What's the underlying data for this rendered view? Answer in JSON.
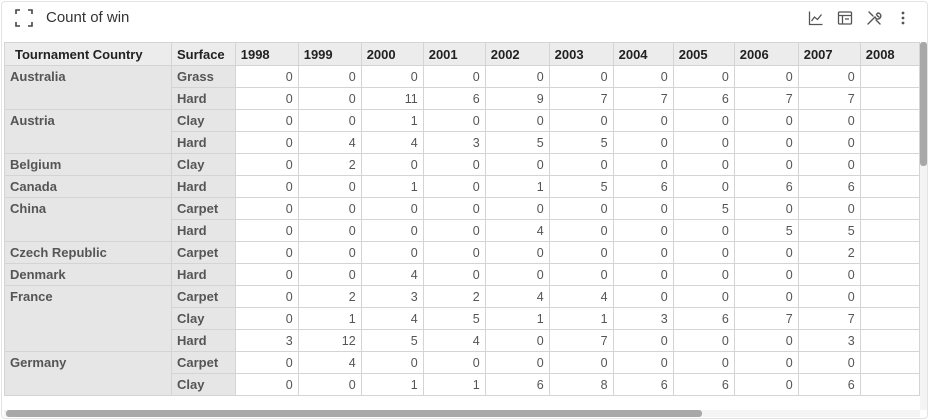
{
  "panel": {
    "title": "Count of win"
  },
  "header_icons": [
    "expand-icon",
    "line-chart-icon",
    "table-view-icon",
    "tools-icon",
    "more-vertical-icon"
  ],
  "table": {
    "columns": [
      "Tournament Country",
      "Surface",
      "1998",
      "1999",
      "2000",
      "2001",
      "2002",
      "2003",
      "2004",
      "2005",
      "2006",
      "2007",
      "2008"
    ],
    "groups": [
      {
        "country": "Australia",
        "rows": [
          {
            "surface": "Grass",
            "values": [
              "0",
              "0",
              "0",
              "0",
              "0",
              "0",
              "0",
              "0",
              "0",
              "0",
              ""
            ]
          },
          {
            "surface": "Hard",
            "values": [
              "0",
              "0",
              "11",
              "6",
              "9",
              "7",
              "7",
              "6",
              "7",
              "7",
              ""
            ]
          }
        ]
      },
      {
        "country": "Austria",
        "rows": [
          {
            "surface": "Clay",
            "values": [
              "0",
              "0",
              "1",
              "0",
              "0",
              "0",
              "0",
              "0",
              "0",
              "0",
              ""
            ]
          },
          {
            "surface": "Hard",
            "values": [
              "0",
              "4",
              "4",
              "3",
              "5",
              "5",
              "0",
              "0",
              "0",
              "0",
              ""
            ]
          }
        ]
      },
      {
        "country": "Belgium",
        "rows": [
          {
            "surface": "Clay",
            "values": [
              "0",
              "2",
              "0",
              "0",
              "0",
              "0",
              "0",
              "0",
              "0",
              "0",
              ""
            ]
          }
        ]
      },
      {
        "country": "Canada",
        "rows": [
          {
            "surface": "Hard",
            "values": [
              "0",
              "0",
              "1",
              "0",
              "1",
              "5",
              "6",
              "0",
              "6",
              "6",
              ""
            ]
          }
        ]
      },
      {
        "country": "China",
        "rows": [
          {
            "surface": "Carpet",
            "values": [
              "0",
              "0",
              "0",
              "0",
              "0",
              "0",
              "0",
              "5",
              "0",
              "0",
              ""
            ]
          },
          {
            "surface": "Hard",
            "values": [
              "0",
              "0",
              "0",
              "0",
              "4",
              "0",
              "0",
              "0",
              "5",
              "5",
              ""
            ]
          }
        ]
      },
      {
        "country": "Czech Republic",
        "rows": [
          {
            "surface": "Carpet",
            "values": [
              "0",
              "0",
              "0",
              "0",
              "0",
              "0",
              "0",
              "0",
              "0",
              "2",
              ""
            ]
          }
        ]
      },
      {
        "country": "Denmark",
        "rows": [
          {
            "surface": "Hard",
            "values": [
              "0",
              "0",
              "4",
              "0",
              "0",
              "0",
              "0",
              "0",
              "0",
              "0",
              ""
            ]
          }
        ]
      },
      {
        "country": "France",
        "rows": [
          {
            "surface": "Carpet",
            "values": [
              "0",
              "2",
              "3",
              "2",
              "4",
              "4",
              "0",
              "0",
              "0",
              "0",
              ""
            ]
          },
          {
            "surface": "Clay",
            "values": [
              "0",
              "1",
              "4",
              "5",
              "1",
              "1",
              "3",
              "6",
              "7",
              "7",
              ""
            ]
          },
          {
            "surface": "Hard",
            "values": [
              "3",
              "12",
              "5",
              "4",
              "0",
              "7",
              "0",
              "0",
              "0",
              "3",
              ""
            ]
          }
        ]
      },
      {
        "country": "Germany",
        "rows": [
          {
            "surface": "Carpet",
            "values": [
              "0",
              "4",
              "0",
              "0",
              "0",
              "0",
              "0",
              "0",
              "0",
              "0",
              ""
            ]
          },
          {
            "surface": "Clay",
            "values": [
              "0",
              "0",
              "1",
              "1",
              "6",
              "8",
              "6",
              "6",
              "0",
              "6",
              ""
            ]
          }
        ]
      }
    ]
  }
}
